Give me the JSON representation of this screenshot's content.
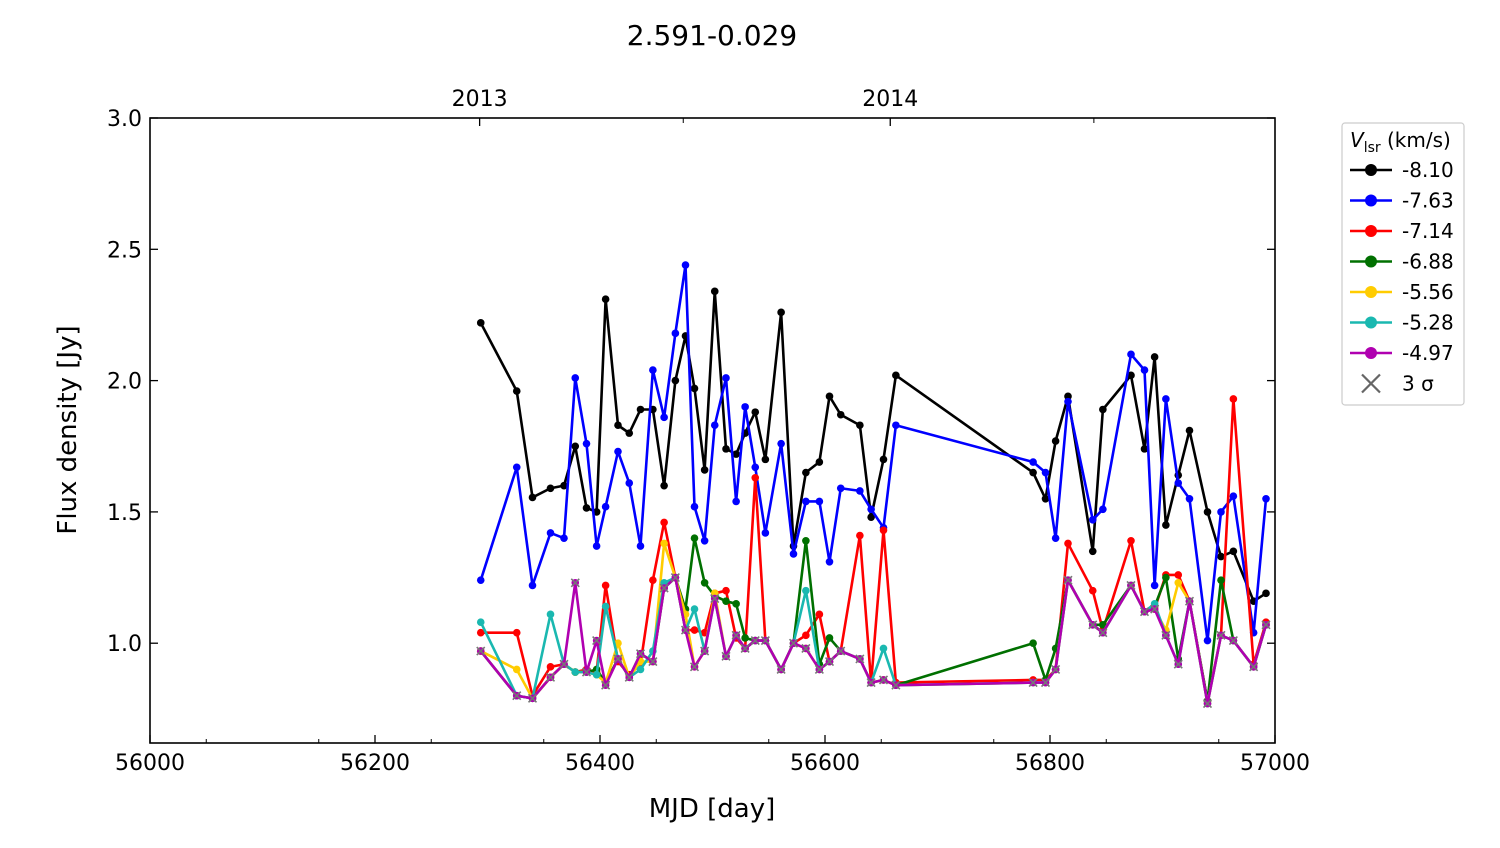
{
  "chart_data": {
    "type": "line",
    "title": "2.591-0.029",
    "xlabel": "MJD [day]",
    "ylabel": "Flux density [Jy]",
    "xlim": [
      56000,
      57000
    ],
    "ylim": [
      0.62,
      3.0
    ],
    "xticks": [
      56000,
      56200,
      56400,
      56600,
      56800,
      57000
    ],
    "xtick_labels": [
      "56000",
      "56200",
      "56400",
      "56600",
      "56800",
      "57000"
    ],
    "yticks": [
      1.0,
      1.5,
      2.0,
      2.5,
      3.0
    ],
    "ytick_labels": [
      "1.0",
      "1.5",
      "2.0",
      "2.5",
      "3.0"
    ],
    "top_axis": {
      "ticks": [
        56293,
        56658
      ],
      "labels": [
        "2013",
        "2014"
      ]
    },
    "grid": false,
    "legend": {
      "title_main": "V",
      "title_sub": "lsr",
      "title_unit": " (km/s)",
      "placement": "outside-right",
      "limit_label": "3 σ"
    },
    "x": [
      56294,
      56326,
      56340,
      56356,
      56368,
      56378,
      56388,
      56397,
      56405,
      56416,
      56426,
      56436,
      56447,
      56457,
      56467,
      56476,
      56484,
      56493,
      56502,
      56512,
      56521,
      56529,
      56538,
      56547,
      56561,
      56572,
      56583,
      56595,
      56604,
      56614,
      56631,
      56641,
      56652,
      56663,
      56785,
      56796,
      56805,
      56816,
      56838,
      56847,
      56872,
      56884,
      56893,
      56903,
      56914,
      56924,
      56940,
      56952,
      56963,
      56981,
      56992
    ],
    "series": [
      {
        "name": "-8.10",
        "color": "#000000",
        "values": [
          2.22,
          1.96,
          1.555,
          1.59,
          1.6,
          1.75,
          1.515,
          1.5,
          2.31,
          1.83,
          1.8,
          1.89,
          1.89,
          1.6,
          2.0,
          2.17,
          1.97,
          1.66,
          2.34,
          1.74,
          1.72,
          1.8,
          1.88,
          1.7,
          2.26,
          1.37,
          1.65,
          1.69,
          1.94,
          1.87,
          1.83,
          1.48,
          1.7,
          2.02,
          1.65,
          1.55,
          1.77,
          1.94,
          1.35,
          1.89,
          2.02,
          1.74,
          2.09,
          1.45,
          1.64,
          1.81,
          1.5,
          1.33,
          1.35,
          1.16,
          1.19
        ]
      },
      {
        "name": "-7.63",
        "color": "#0000ff",
        "values": [
          1.24,
          1.67,
          1.22,
          1.42,
          1.4,
          2.01,
          1.76,
          1.37,
          1.52,
          1.73,
          1.61,
          1.37,
          2.04,
          1.86,
          2.18,
          2.44,
          1.52,
          1.39,
          1.83,
          2.01,
          1.54,
          1.9,
          1.67,
          1.42,
          1.76,
          1.34,
          1.54,
          1.54,
          1.31,
          1.59,
          1.58,
          1.51,
          1.44,
          1.83,
          1.69,
          1.65,
          1.4,
          1.92,
          1.47,
          1.51,
          2.1,
          2.04,
          1.22,
          1.93,
          1.61,
          1.55,
          1.01,
          1.5,
          1.56,
          1.04,
          1.55
        ]
      },
      {
        "name": "-7.14",
        "color": "#ff0000",
        "values": [
          1.04,
          1.04,
          0.8,
          0.91,
          0.92,
          0.89,
          0.9,
          0.89,
          1.22,
          0.93,
          0.88,
          0.92,
          1.24,
          1.46,
          1.25,
          1.05,
          1.05,
          1.04,
          1.19,
          1.2,
          1.02,
          0.98,
          1.63,
          1.01,
          0.9,
          1.0,
          1.03,
          1.11,
          0.93,
          0.97,
          1.41,
          0.85,
          1.43,
          0.85,
          0.86,
          0.86,
          0.9,
          1.38,
          1.2,
          1.05,
          1.39,
          1.12,
          1.13,
          1.26,
          1.26,
          1.16,
          0.78,
          1.03,
          1.93,
          0.92,
          1.08
        ]
      },
      {
        "name": "-6.88",
        "color": "#007000",
        "values": [
          0.97,
          0.8,
          0.79,
          0.87,
          0.92,
          0.89,
          0.89,
          0.9,
          0.85,
          0.94,
          0.87,
          0.96,
          0.93,
          1.21,
          1.25,
          1.13,
          1.4,
          1.23,
          1.18,
          1.16,
          1.15,
          1.02,
          1.01,
          1.01,
          0.9,
          1.0,
          1.39,
          0.92,
          1.02,
          0.97,
          0.94,
          0.85,
          0.86,
          0.84,
          1.0,
          0.86,
          0.98,
          1.24,
          1.07,
          1.07,
          1.22,
          1.12,
          1.14,
          1.25,
          0.94,
          1.16,
          0.78,
          1.24,
          1.01,
          0.91,
          1.07
        ]
      },
      {
        "name": "-5.56",
        "color": "#ffcc00",
        "values": [
          0.97,
          0.9,
          0.79,
          0.87,
          0.92,
          0.89,
          0.89,
          0.88,
          0.85,
          1.0,
          0.87,
          0.93,
          0.93,
          1.38,
          1.25,
          1.11,
          0.91,
          0.97,
          1.19,
          0.95,
          1.03,
          0.98,
          1.01,
          1.01,
          0.9,
          1.0,
          0.98,
          0.9,
          0.93,
          0.97,
          0.94,
          0.85,
          0.86,
          0.84,
          0.85,
          0.85,
          0.9,
          1.24,
          1.07,
          1.04,
          1.22,
          1.12,
          1.13,
          1.05,
          1.23,
          1.16,
          0.77,
          1.03,
          1.01,
          0.91,
          1.07
        ]
      },
      {
        "name": "-5.28",
        "color": "#1ab8b0",
        "values": [
          1.08,
          0.8,
          0.79,
          1.11,
          0.92,
          0.89,
          0.89,
          0.88,
          1.14,
          0.94,
          0.87,
          0.9,
          0.97,
          1.23,
          1.25,
          1.05,
          1.13,
          0.97,
          1.17,
          0.95,
          1.03,
          0.98,
          1.01,
          1.01,
          0.9,
          1.0,
          1.2,
          0.9,
          0.93,
          0.97,
          0.94,
          0.85,
          0.98,
          0.84,
          0.85,
          0.85,
          0.9,
          1.24,
          1.07,
          1.04,
          1.22,
          1.12,
          1.15,
          1.03,
          0.92,
          1.16,
          0.77,
          1.03,
          1.01,
          0.91,
          1.07
        ]
      },
      {
        "name": "-4.97",
        "color": "#b000b0",
        "values": [
          0.97,
          0.8,
          0.79,
          0.87,
          0.92,
          1.23,
          0.89,
          1.01,
          0.84,
          0.94,
          0.87,
          0.96,
          0.93,
          1.21,
          1.25,
          1.05,
          0.91,
          0.97,
          1.17,
          0.95,
          1.03,
          0.98,
          1.01,
          1.01,
          0.9,
          1.0,
          0.98,
          0.9,
          0.93,
          0.97,
          0.94,
          0.85,
          0.86,
          0.84,
          0.85,
          0.85,
          0.9,
          1.24,
          1.07,
          1.04,
          1.22,
          1.12,
          1.13,
          1.03,
          0.92,
          1.16,
          0.77,
          1.03,
          1.01,
          0.91,
          1.07
        ]
      }
    ]
  }
}
